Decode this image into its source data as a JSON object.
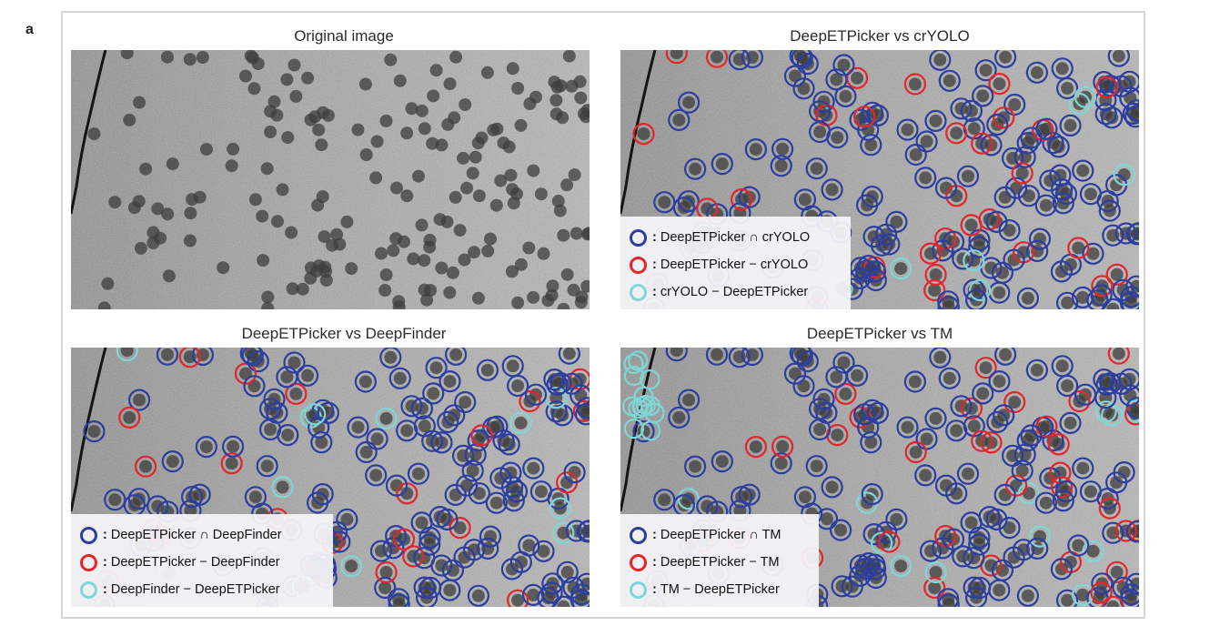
{
  "figure": {
    "panel_letter": "a"
  },
  "colors": {
    "intersection": "#2c3e9e",
    "picker_only": "#e2262c",
    "other_only": "#7fd6d6"
  },
  "panels": [
    {
      "title": "Original image",
      "legend": []
    },
    {
      "title": "DeepETPicker vs crYOLO",
      "legend": [
        {
          "sep": ":",
          "label": "DeepETPicker ∩ crYOLO",
          "color": "#2c3e9e"
        },
        {
          "sep": ":",
          "label": "DeepETPicker − crYOLO",
          "color": "#e2262c"
        },
        {
          "sep": ":",
          "label": "crYOLO − DeepETPicker",
          "color": "#7fd6d6"
        }
      ]
    },
    {
      "title": "DeepETPicker vs DeepFinder",
      "legend": [
        {
          "sep": ":",
          "label": "DeepETPicker ∩ DeepFinder",
          "color": "#2c3e9e"
        },
        {
          "sep": ":",
          "label": "DeepETPicker − DeepFinder",
          "color": "#e2262c"
        },
        {
          "sep": ":",
          "label": "DeepFinder − DeepETPicker",
          "color": "#7fd6d6"
        }
      ]
    },
    {
      "title": "DeepETPicker vs TM",
      "legend": [
        {
          "sep": ":",
          "label": "DeepETPicker ∩ TM",
          "color": "#2c3e9e"
        },
        {
          "sep": ":",
          "label": "DeepETPicker − TM",
          "color": "#e2262c"
        },
        {
          "sep": ":",
          "label": "TM − DeepETPicker",
          "color": "#7fd6d6"
        }
      ]
    }
  ]
}
